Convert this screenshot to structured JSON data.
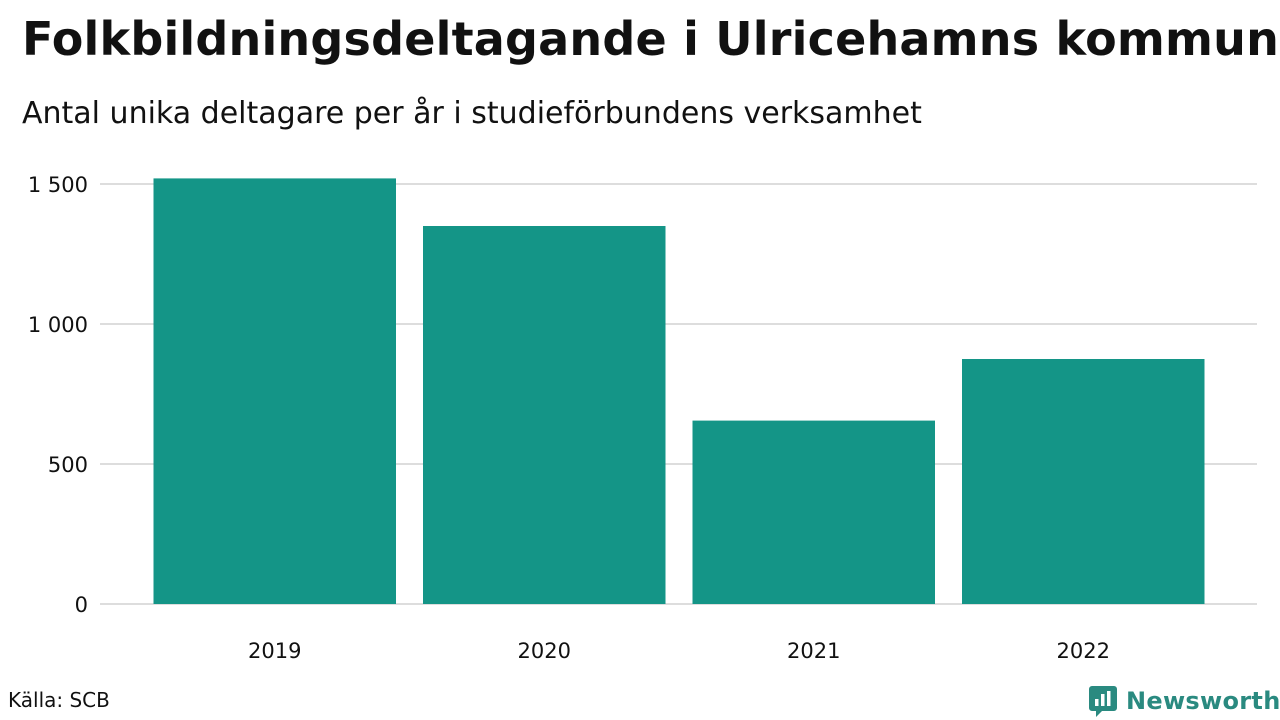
{
  "header": {
    "title": "Folkbildningsdeltagande i Ulricehamns kommun",
    "subtitle": "Antal unika deltagare per år i studieförbundens verksamhet"
  },
  "footer": {
    "source": "Källa: SCB",
    "brand": "Newsworthy"
  },
  "colors": {
    "bar": "#149587",
    "grid": "#dddddd",
    "brand": "#2a8a80"
  },
  "chart_data": {
    "type": "bar",
    "title": "Folkbildningsdeltagande i Ulricehamns kommun",
    "subtitle": "Antal unika deltagare per år i studieförbundens verksamhet",
    "xlabel": "",
    "ylabel": "",
    "categories": [
      "2019",
      "2020",
      "2021",
      "2022"
    ],
    "values": [
      1520,
      1350,
      655,
      875
    ],
    "ylim": [
      0,
      1500
    ],
    "yticks": [
      0,
      500,
      1000,
      1500
    ],
    "ytick_labels": [
      "0",
      "500",
      "1 000",
      "1 500"
    ],
    "grid": "horizontal",
    "legend": "none"
  }
}
